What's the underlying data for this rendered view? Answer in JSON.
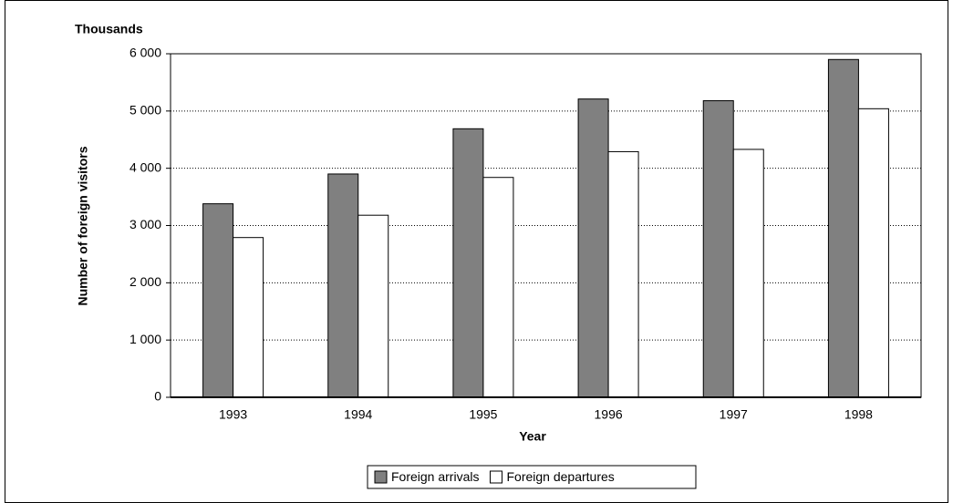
{
  "chart_data": {
    "type": "bar",
    "unit_label": "Thousands",
    "y_axis_label": "Number of foreign visitors",
    "x_axis_label": "Year",
    "categories": [
      "1993",
      "1994",
      "1995",
      "1996",
      "1997",
      "1998"
    ],
    "series": [
      {
        "name": "Foreign arrivals",
        "color": "#808080",
        "values": [
          3380,
          3900,
          4690,
          5210,
          5180,
          5900
        ]
      },
      {
        "name": "Foreign departures",
        "color": "#ffffff",
        "values": [
          2790,
          3180,
          3840,
          4290,
          4330,
          5040
        ]
      }
    ],
    "ylim": [
      0,
      6000
    ],
    "yticks": [
      0,
      {
        "value": 1000,
        "label": "1 000"
      },
      {
        "value": 2000,
        "label": "2 000"
      },
      {
        "value": 3000,
        "label": "3 000"
      },
      {
        "value": 4000,
        "label": "4 000"
      },
      {
        "value": 5000,
        "label": "5 000"
      },
      {
        "value": 6000,
        "label": "6 000"
      }
    ],
    "grid": true,
    "legend": "bottom"
  }
}
